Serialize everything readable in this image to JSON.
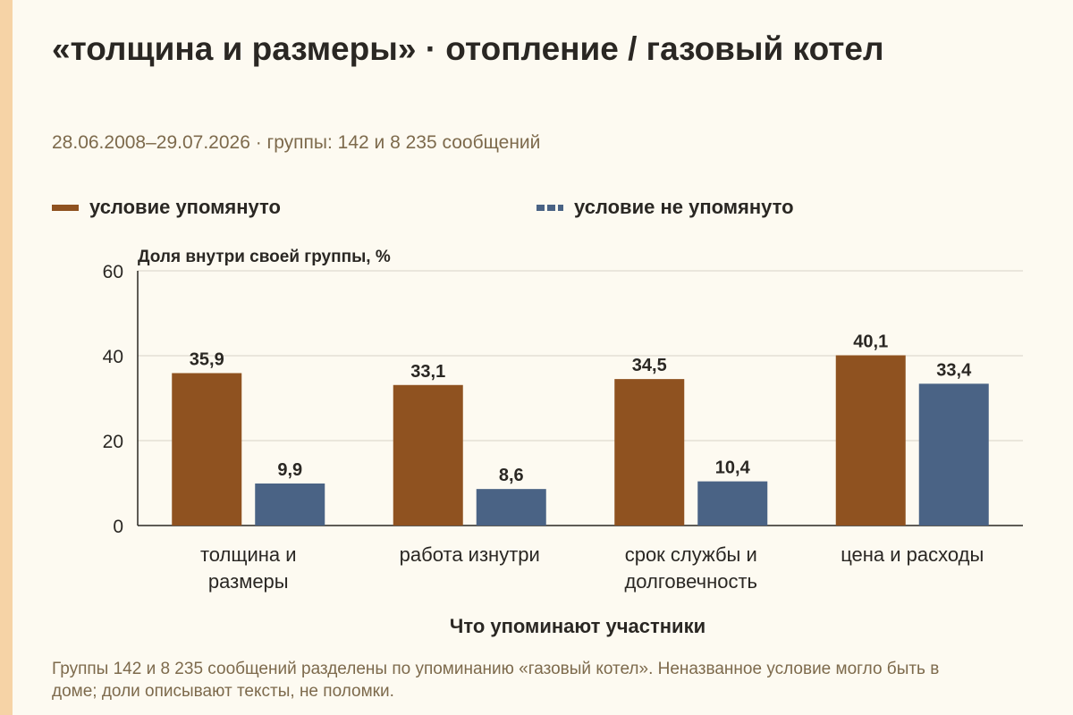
{
  "title": "«толщина и размеры» · отопление / газовый котел",
  "subtitle": "28.06.2008–29.07.2026 · группы: 142 и 8 235 сообщений",
  "footnote": "Группы 142 и 8 235 сообщений разделены по упоминанию «газовый котел». Неназванное условие могло быть в доме; доли описывают тексты, не поломки.",
  "colors": {
    "mentioned": "#8f5220",
    "not_mentioned": "#4a6385",
    "grid": "#d8d2c6",
    "axis": "#2a2723",
    "text": "#2a2723",
    "muted": "#7d6a4c",
    "accent_strip": "#f6d3a6"
  },
  "chart_data": {
    "type": "bar",
    "categories": [
      [
        "толщина и",
        "размеры"
      ],
      [
        "работа изнутри"
      ],
      [
        "срок службы и",
        "долговечность"
      ],
      [
        "цена и расходы"
      ]
    ],
    "series": [
      {
        "name": "условие упомянуто",
        "values": [
          35.9,
          33.1,
          34.5,
          40.1
        ],
        "labels": [
          "35,9",
          "33,1",
          "34,5",
          "40,1"
        ]
      },
      {
        "name": "условие не упомянуто",
        "values": [
          9.9,
          8.6,
          10.4,
          33.4
        ],
        "labels": [
          "9,9",
          "8,6",
          "10,4",
          "33,4"
        ]
      }
    ],
    "ylabel": "Доля внутри своей группы, %",
    "xlabel": "Что упоминают участники",
    "ylim": [
      0,
      60
    ],
    "yticks": [
      0,
      20,
      40,
      60
    ],
    "grid": true,
    "legend": "top"
  }
}
